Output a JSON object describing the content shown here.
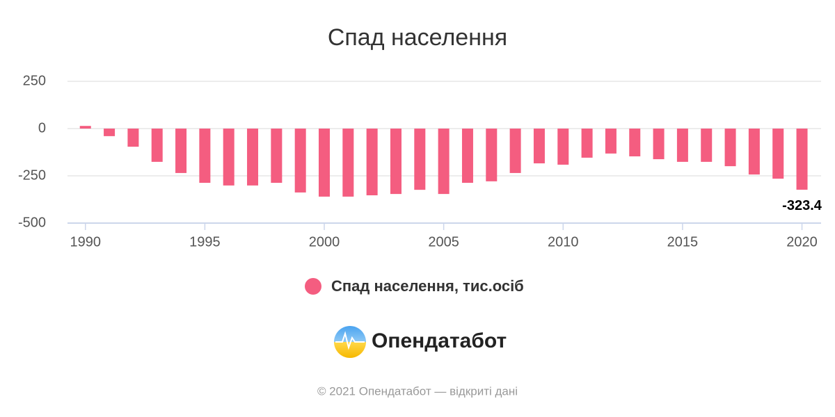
{
  "chart_data": {
    "type": "bar",
    "title": "Спад населення",
    "x": [
      1990,
      1991,
      1992,
      1993,
      1994,
      1995,
      1996,
      1997,
      1998,
      1999,
      2000,
      2001,
      2002,
      2003,
      2004,
      2005,
      2006,
      2007,
      2008,
      2009,
      2010,
      2011,
      2012,
      2013,
      2014,
      2015,
      2016,
      2017,
      2018,
      2019,
      2020
    ],
    "series": [
      {
        "name": "Спад населення, тис.осіб",
        "color": "#f45d80",
        "values": [
          14,
          -40,
          -96,
          -176,
          -235,
          -287,
          -301,
          -301,
          -287,
          -338,
          -360,
          -360,
          -353,
          -346,
          -324,
          -346,
          -287,
          -279,
          -235,
          -184,
          -191,
          -154,
          -132,
          -147,
          -162,
          -176,
          -176,
          -199,
          -243,
          -265,
          -323.4
        ],
        "value_labels": [
          null,
          null,
          null,
          null,
          null,
          null,
          null,
          null,
          null,
          null,
          null,
          null,
          null,
          null,
          null,
          null,
          null,
          null,
          null,
          null,
          null,
          null,
          null,
          null,
          null,
          null,
          null,
          null,
          null,
          null,
          "-323.4"
        ]
      }
    ],
    "xlim": [
      1989.25,
      2020.8
    ],
    "xticks": [
      1990,
      1995,
      2000,
      2005,
      2010,
      2015,
      2020
    ],
    "ylim": [
      -500,
      250
    ],
    "yticks": [
      250,
      0,
      -250,
      -500
    ],
    "grid": true
  },
  "logo": {
    "text": "Опендатабот"
  },
  "footer": {
    "text": "© 2021 Опендатабот — відкриті дані"
  }
}
